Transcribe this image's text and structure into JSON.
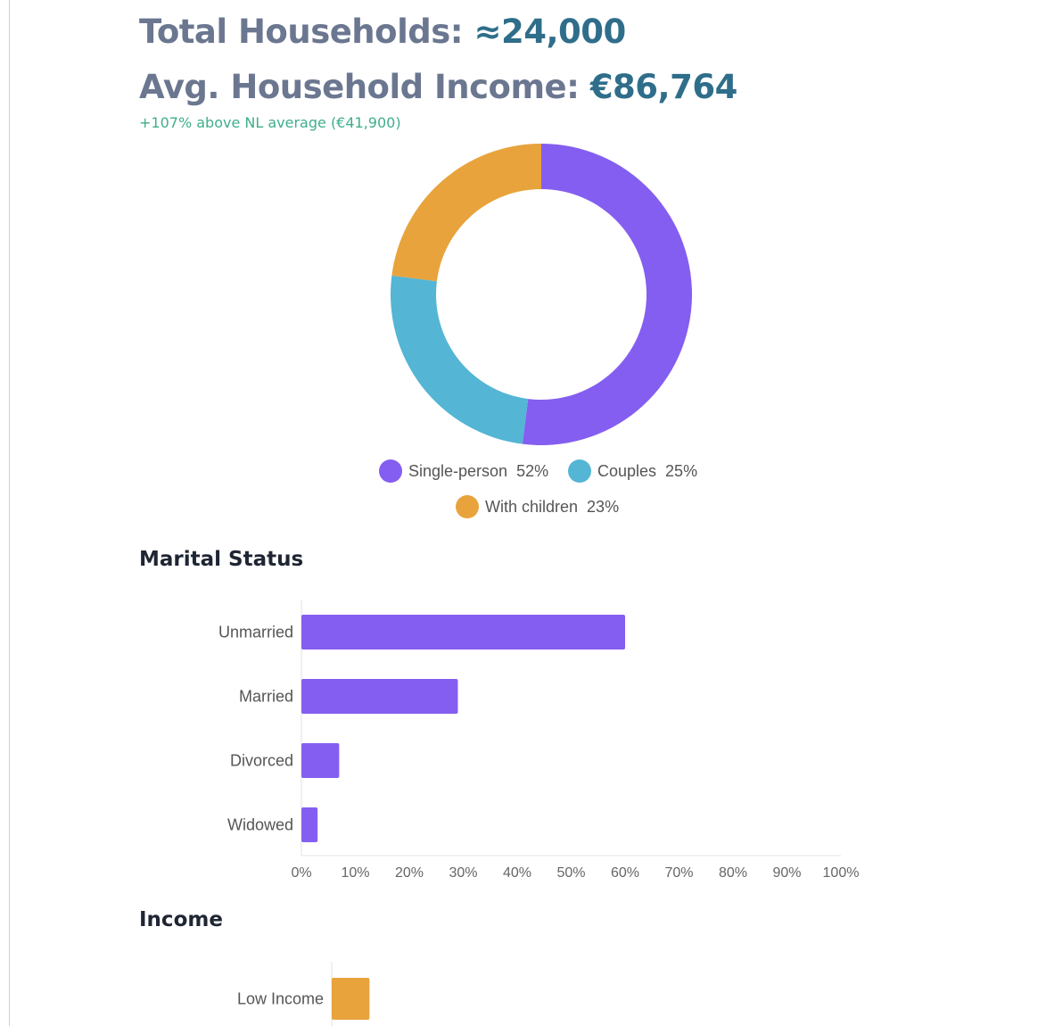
{
  "summary": {
    "households_label": "Total Households:",
    "households_value": "≈24,000",
    "income_label": "Avg. Household Income:",
    "income_value": "€86,764",
    "comparison": "+107% above NL average (€41,900)"
  },
  "chart_data": [
    {
      "type": "pie",
      "title": "",
      "slices": [
        {
          "label": "Single-person",
          "value": 52,
          "display": "52%",
          "color": "#845ef0"
        },
        {
          "label": "Couples",
          "value": 25,
          "display": "25%",
          "color": "#54b5d4"
        },
        {
          "label": "With children",
          "value": 23,
          "display": "23%",
          "color": "#e8a33c"
        }
      ]
    },
    {
      "type": "bar",
      "orientation": "horizontal",
      "title": "Marital Status",
      "categories": [
        "Unmarried",
        "Married",
        "Divorced",
        "Widowed"
      ],
      "values": [
        60,
        29,
        7,
        3
      ],
      "color": "#845ef0",
      "xlim": [
        0,
        100
      ],
      "ticks": [
        "0%",
        "10%",
        "20%",
        "30%",
        "40%",
        "50%",
        "60%",
        "70%",
        "80%",
        "90%",
        "100%"
      ]
    },
    {
      "type": "bar",
      "orientation": "horizontal",
      "title": "Income",
      "categories": [
        "Low Income"
      ],
      "values": [
        7
      ],
      "color": "#e8a33c",
      "xlim": [
        0,
        100
      ]
    }
  ]
}
